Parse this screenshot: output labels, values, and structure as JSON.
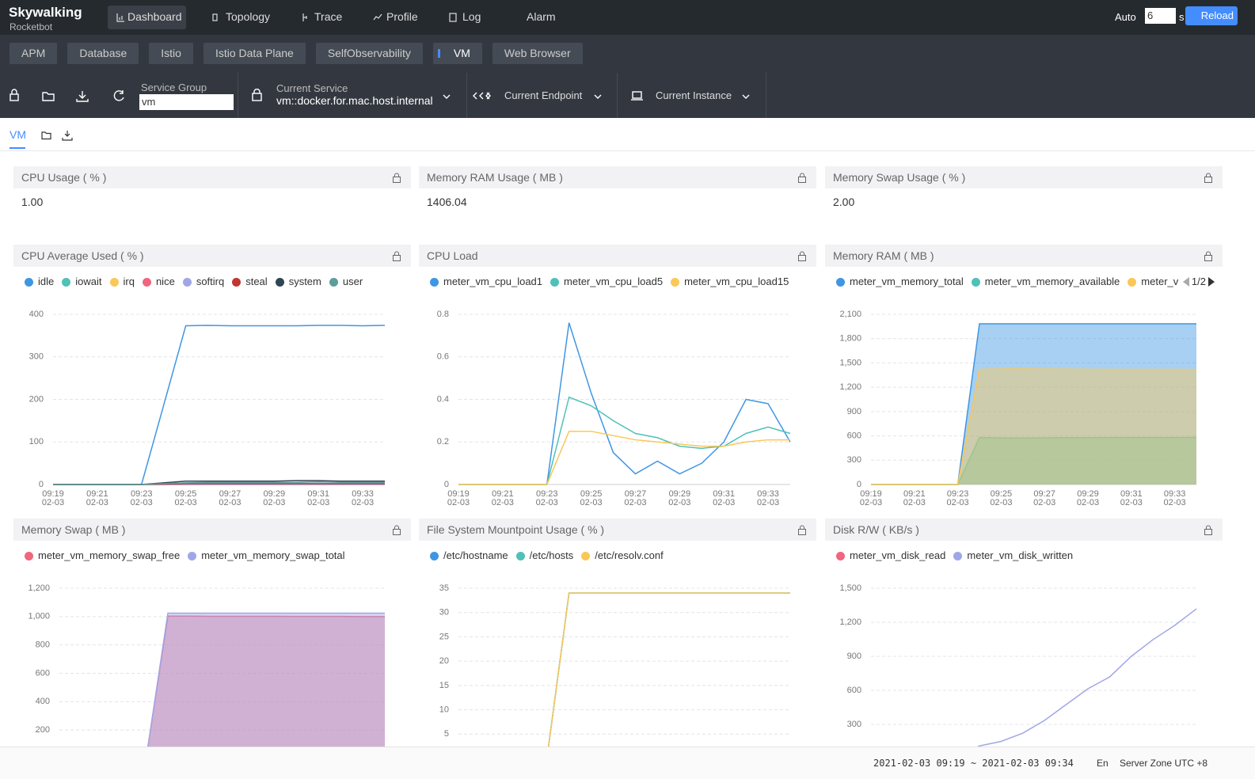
{
  "nav": {
    "brand": "Skywalking",
    "sub": "Rocketbot",
    "items": [
      "Dashboard",
      "Topology",
      "Trace",
      "Profile",
      "Log",
      "Alarm"
    ],
    "active": 0,
    "auto": "Auto",
    "interval": "6",
    "unit": "s",
    "reload": "Reload"
  },
  "tabs": {
    "items": [
      "APM",
      "Database",
      "Istio",
      "Istio Data Plane",
      "SelfObservability",
      "VM",
      "Web Browser"
    ],
    "active": 5
  },
  "toolbar": {
    "service_group_label": "Service Group",
    "service_group": "vm",
    "current_service_label": "Current Service",
    "current_service": "vm::docker.for.mac.host.internal",
    "current_endpoint": "Current Endpoint",
    "current_instance": "Current Instance"
  },
  "dashboard_tab": "VM",
  "cards": [
    {
      "title": "CPU Usage ( % )",
      "value": "1.00"
    },
    {
      "title": "Memory RAM Usage ( MB )",
      "value": "1406.04"
    },
    {
      "title": "Memory Swap Usage ( % )",
      "value": "2.00"
    }
  ],
  "charts": [
    {
      "type": "line",
      "title": "CPU Average Used ( % )",
      "categories": [
        "09:19\n02-03",
        null,
        "09:21\n02-03",
        null,
        "09:23\n02-03",
        null,
        "09:25\n02-03",
        null,
        "09:27\n02-03",
        null,
        "09:29\n02-03",
        null,
        "09:31\n02-03",
        null,
        "09:33\n02-03",
        null
      ],
      "ylim": [
        0,
        400
      ],
      "yticks": [
        0,
        100,
        200,
        300,
        400
      ],
      "grid": true,
      "series": [
        {
          "name": "idle",
          "color": "#3f96e3",
          "values": [
            0,
            0,
            0,
            0,
            0,
            186,
            373,
            374,
            373,
            373,
            373,
            373,
            374,
            374,
            373,
            374
          ]
        },
        {
          "name": "iowait",
          "color": "#4fc1b8",
          "values": [
            0,
            0,
            0,
            0,
            0,
            0,
            0,
            0,
            0,
            0,
            0,
            0,
            0,
            0,
            0,
            0
          ]
        },
        {
          "name": "irq",
          "color": "#fbc756",
          "values": [
            0,
            0,
            0,
            0,
            0,
            0,
            0,
            0,
            0,
            0,
            0,
            0,
            0,
            0,
            0,
            0
          ]
        },
        {
          "name": "nice",
          "color": "#f0667d",
          "values": [
            0,
            0,
            0,
            0,
            0,
            0,
            0,
            0,
            0,
            0,
            0,
            0,
            0,
            0,
            0,
            0
          ]
        },
        {
          "name": "softirq",
          "color": "#a0a7e6",
          "values": [
            0,
            0,
            0,
            0,
            0,
            0,
            0,
            0,
            0,
            0,
            0,
            0,
            0,
            0,
            0,
            0
          ]
        },
        {
          "name": "steal",
          "color": "#c23531",
          "values": [
            0,
            0,
            0,
            0,
            0,
            1,
            2,
            2,
            2,
            2,
            2,
            2,
            2,
            2,
            2,
            2
          ]
        },
        {
          "name": "system",
          "color": "#2f4554",
          "values": [
            0,
            0,
            0,
            0,
            0,
            4,
            8,
            8,
            8,
            8,
            8,
            9,
            9,
            8,
            8,
            8
          ]
        },
        {
          "name": "user",
          "color": "#5d9e9a",
          "values": [
            0,
            0,
            0,
            0,
            0,
            2,
            4,
            5,
            5,
            5,
            5,
            5,
            6,
            5,
            5,
            5
          ]
        }
      ]
    },
    {
      "type": "line",
      "title": "CPU Load",
      "categories": [
        "09:19\n02-03",
        null,
        "09:21\n02-03",
        null,
        "09:23\n02-03",
        null,
        "09:25\n02-03",
        null,
        "09:27\n02-03",
        null,
        "09:29\n02-03",
        null,
        "09:31\n02-03",
        null,
        "09:33\n02-03",
        null
      ],
      "ylim": [
        0,
        0.8
      ],
      "yticks": [
        0,
        0.2,
        0.4,
        0.6,
        0.8
      ],
      "grid": true,
      "series": [
        {
          "name": "meter_vm_cpu_load1",
          "color": "#3f96e3",
          "values": [
            0,
            0,
            0,
            0,
            0,
            0.76,
            0.43,
            0.15,
            0.05,
            0.11,
            0.05,
            0.1,
            0.2,
            0.4,
            0.38,
            0.2
          ]
        },
        {
          "name": "meter_vm_cpu_load5",
          "color": "#4fc1b8",
          "values": [
            0,
            0,
            0,
            0,
            0,
            0.41,
            0.37,
            0.3,
            0.24,
            0.22,
            0.18,
            0.17,
            0.18,
            0.24,
            0.27,
            0.24
          ]
        },
        {
          "name": "meter_vm_cpu_load15",
          "color": "#fbc756",
          "values": [
            0,
            0,
            0,
            0,
            0,
            0.25,
            0.25,
            0.23,
            0.21,
            0.2,
            0.19,
            0.18,
            0.18,
            0.2,
            0.21,
            0.21
          ]
        }
      ]
    },
    {
      "type": "area",
      "title": "Memory RAM ( MB )",
      "legend_page": "1/2",
      "categories": [
        "09:19\n02-03",
        null,
        "09:21\n02-03",
        null,
        "09:23\n02-03",
        null,
        "09:25\n02-03",
        null,
        "09:27\n02-03",
        null,
        "09:29\n02-03",
        null,
        "09:31\n02-03",
        null,
        "09:33\n02-03",
        null
      ],
      "ylim": [
        0,
        2100
      ],
      "yticks": [
        0,
        300,
        600,
        900,
        {
          "value": 1200,
          "label": "1,200"
        },
        {
          "value": 1500,
          "label": "1,500"
        },
        {
          "value": 1800,
          "label": "1,800"
        },
        {
          "value": 2100,
          "label": "2,100"
        }
      ],
      "grid": true,
      "series": [
        {
          "name": "meter_vm_memory_total",
          "color": "#3f96e3",
          "values": [
            0,
            0,
            0,
            0,
            0,
            1983,
            1983,
            1983,
            1983,
            1983,
            1983,
            1983,
            1983,
            1983,
            1983,
            1983
          ]
        },
        {
          "name": "meter_vm_memory_available",
          "color": "#4fc1b8",
          "values": [
            0,
            0,
            0,
            0,
            0,
            580,
            575,
            574,
            576,
            578,
            579,
            580,
            580,
            580,
            580,
            581
          ]
        },
        {
          "name": "meter_vm",
          "color": "#fbc756",
          "values": [
            0,
            0,
            0,
            0,
            0,
            1420,
            1425,
            1426,
            1424,
            1422,
            1421,
            1420,
            1420,
            1420,
            1420,
            1419
          ]
        }
      ]
    },
    {
      "type": "area",
      "title": "Memory Swap ( MB )",
      "ylim": [
        0,
        1200
      ],
      "yticks": [
        200,
        400,
        600,
        800,
        {
          "value": 1000,
          "label": "1,000"
        },
        {
          "value": 1200,
          "label": "1,200"
        }
      ],
      "grid": true,
      "series": [
        {
          "name": "meter_vm_memory_swap_free",
          "color": "#f0667d",
          "values": [
            0,
            0,
            0,
            0,
            0,
            1003,
            1003,
            1002,
            1002,
            1002,
            1002,
            1001,
            1001,
            1001,
            1000,
            1000
          ]
        },
        {
          "name": "meter_vm_memory_swap_total",
          "color": "#a0a7e6",
          "values": [
            0,
            0,
            0,
            0,
            0,
            1024,
            1024,
            1024,
            1024,
            1024,
            1024,
            1024,
            1024,
            1024,
            1024,
            1024
          ]
        }
      ]
    },
    {
      "type": "line",
      "title": "File System Mountpoint Usage ( % )",
      "ylim": [
        0,
        35
      ],
      "yticks": [
        5,
        10,
        15,
        20,
        25,
        30,
        35
      ],
      "grid": true,
      "series": [
        {
          "name": "/etc/hostname",
          "color": "#3f96e3",
          "values": [
            0,
            0,
            0,
            0,
            0,
            34,
            34,
            34,
            34,
            34,
            34,
            34,
            34,
            34,
            34,
            34
          ]
        },
        {
          "name": "/etc/hosts",
          "color": "#4fc1b8",
          "values": [
            0,
            0,
            0,
            0,
            0,
            34,
            34,
            34,
            34,
            34,
            34,
            34,
            34,
            34,
            34,
            34
          ]
        },
        {
          "name": "/etc/resolv.conf",
          "color": "#fbc756",
          "values": [
            0,
            0,
            0,
            0,
            0,
            34,
            34,
            34,
            34,
            34,
            34,
            34,
            34,
            34,
            34,
            34
          ]
        }
      ]
    },
    {
      "type": "line",
      "title": "Disk R/W ( KB/s )",
      "ylim": [
        0,
        1500
      ],
      "yticks": [
        300,
        600,
        900,
        {
          "value": 1200,
          "label": "1,200"
        },
        {
          "value": 1500,
          "label": "1,500"
        }
      ],
      "grid": true,
      "series": [
        {
          "name": "meter_vm_disk_read",
          "color": "#f0667d",
          "values": [
            0,
            0,
            0,
            0,
            0,
            0,
            0,
            0,
            0,
            0,
            0,
            0,
            0,
            0,
            0,
            0
          ]
        },
        {
          "name": "meter_vm_disk_written",
          "color": "#a0a7e6",
          "values": [
            0,
            0,
            0,
            0,
            0,
            110,
            150,
            223,
            335,
            475,
            614,
            718,
            900,
            1047,
            1172,
            1318
          ]
        }
      ]
    }
  ],
  "footer": {
    "range": "2021-02-03 09:19 ~ 2021-02-03 09:34",
    "lang": "En",
    "zone": "Server Zone UTC +8"
  }
}
